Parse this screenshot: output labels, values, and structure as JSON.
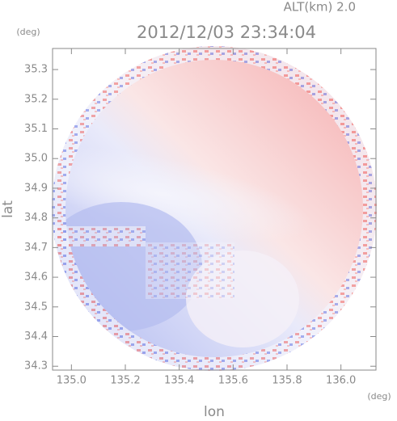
{
  "chart_data": {
    "type": "image",
    "title": "2012/12/03 23:34:04",
    "subtitle": "ALT(km)  2.0",
    "xlabel": "lon",
    "ylabel": "lat",
    "x_unit": "(deg)",
    "y_unit": "(deg)",
    "xlim": [
      134.93,
      136.13
    ],
    "ylim": [
      34.287,
      35.371
    ],
    "xticks": [
      {
        "value": 135.0,
        "label": "135.0"
      },
      135.2,
      135.4,
      135.6,
      135.8,
      {
        "value": 136.0,
        "label": "136.0"
      }
    ],
    "yticks": [
      34.3,
      34.4,
      34.5,
      34.6,
      34.7,
      34.8,
      34.9,
      {
        "value": 35.0,
        "label": "35.0"
      },
      35.1,
      35.2,
      35.3
    ]
  }
}
